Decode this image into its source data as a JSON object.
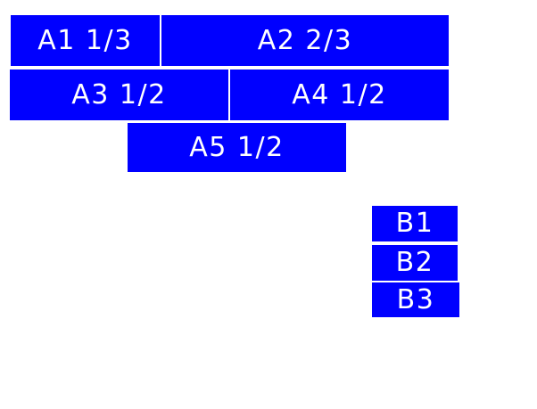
{
  "colors": {
    "block_fill": "#0000ff",
    "block_text": "#ffffff",
    "page_background": "#ffffff"
  },
  "blocks": {
    "a1": {
      "label": "A1 1/3"
    },
    "a2": {
      "label": "A2 2/3"
    },
    "a3": {
      "label": "A3 1/2"
    },
    "a4": {
      "label": "A4 1/2"
    },
    "a5": {
      "label": "A5 1/2"
    },
    "b1": {
      "label": "B1"
    },
    "b2": {
      "label": "B2"
    },
    "b3": {
      "label": "B3"
    }
  }
}
